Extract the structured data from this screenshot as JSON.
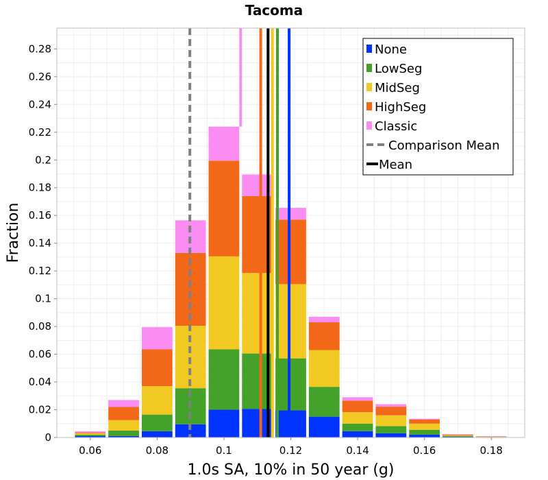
{
  "chart_data": {
    "type": "bar",
    "stacked": true,
    "title": "Tacoma",
    "xlabel": "1.0s SA, 10% in 50 year (g)",
    "ylabel": "Fraction",
    "xlim": [
      0.05,
      0.19
    ],
    "ylim": [
      0,
      0.295
    ],
    "xticks": [
      0.06,
      0.08,
      0.1,
      0.12,
      0.14,
      0.16,
      0.18
    ],
    "xtick_labels": [
      "0.06",
      "0.08",
      "0.1",
      "0.12",
      "0.14",
      "0.16",
      "0.18"
    ],
    "yticks": [
      0,
      0.02,
      0.04,
      0.06,
      0.08,
      0.1,
      0.12,
      0.14,
      0.16,
      0.18,
      0.2,
      0.22,
      0.24,
      0.26,
      0.28
    ],
    "ytick_labels": [
      "0",
      "0.02",
      "0.04",
      "0.06",
      "0.08",
      "0.1",
      "0.12",
      "0.14",
      "0.16",
      "0.18",
      "0.2",
      "0.22",
      "0.24",
      "0.26",
      "0.28"
    ],
    "bin_width": 0.01,
    "bin_centers": [
      0.06,
      0.07,
      0.08,
      0.09,
      0.1,
      0.11,
      0.12,
      0.13,
      0.14,
      0.15,
      0.16,
      0.17,
      0.18
    ],
    "series": [
      {
        "name": "None",
        "color": "#0033ff",
        "values": [
          0.001,
          0.001,
          0.0045,
          0.0095,
          0.02,
          0.0205,
          0.0195,
          0.015,
          0.0045,
          0.003,
          0.002,
          0.0005,
          0.0002
        ]
      },
      {
        "name": "LowSeg",
        "color": "#44a12a",
        "values": [
          0.001,
          0.004,
          0.012,
          0.026,
          0.0435,
          0.04,
          0.0375,
          0.0215,
          0.0055,
          0.0052,
          0.0035,
          0.0005,
          0.0002
        ]
      },
      {
        "name": "MidSeg",
        "color": "#f2c922",
        "values": [
          0.001,
          0.0075,
          0.0205,
          0.045,
          0.067,
          0.058,
          0.0535,
          0.0265,
          0.0082,
          0.0078,
          0.0045,
          0.0005,
          0.0002
        ]
      },
      {
        "name": "HighSeg",
        "color": "#f26818",
        "values": [
          0.0005,
          0.0095,
          0.0265,
          0.0525,
          0.069,
          0.0555,
          0.0465,
          0.02,
          0.0083,
          0.0062,
          0.003,
          0.0005,
          0.0002
        ]
      },
      {
        "name": "Classic",
        "color": "#fb8cf2",
        "values": [
          0.001,
          0.005,
          0.016,
          0.0235,
          0.0245,
          0.0155,
          0.0085,
          0.004,
          0.0025,
          0.0018,
          0.0005,
          0.0003,
          0.0002
        ]
      }
    ],
    "mean_lines": [
      {
        "name": "None",
        "x": 0.1195,
        "color": "#0033ff"
      },
      {
        "name": "LowSeg",
        "x": 0.116,
        "color": "#44a12a"
      },
      {
        "name": "MidSeg",
        "x": 0.1145,
        "color": "#f2c922"
      },
      {
        "name": "HighSeg",
        "x": 0.111,
        "color": "#f26818"
      },
      {
        "name": "Classic",
        "x": 0.105,
        "color": "#fb8cf2",
        "y_start": 0.224
      }
    ],
    "comparison_mean": {
      "name": "Comparison Mean",
      "x": 0.0898,
      "color": "#808080"
    },
    "mean": {
      "name": "Mean",
      "x": 0.1132,
      "color": "#000000"
    },
    "legend": {
      "position": "top-right",
      "entries": [
        {
          "label": "None",
          "color": "#0033ff",
          "kind": "box"
        },
        {
          "label": "LowSeg",
          "color": "#44a12a",
          "kind": "box"
        },
        {
          "label": "MidSeg",
          "color": "#f2c922",
          "kind": "box"
        },
        {
          "label": "HighSeg",
          "color": "#f26818",
          "kind": "box"
        },
        {
          "label": "Classic",
          "color": "#fb8cf2",
          "kind": "box"
        },
        {
          "label": "Comparison Mean",
          "color": "#808080",
          "kind": "dash"
        },
        {
          "label": "Mean",
          "color": "#000000",
          "kind": "line"
        }
      ]
    },
    "grid": true
  }
}
